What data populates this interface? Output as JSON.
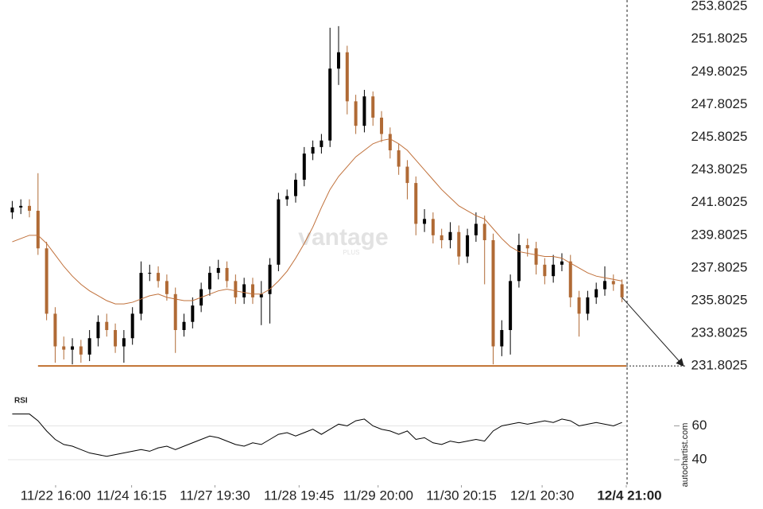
{
  "branding": {
    "watermark": "vantage",
    "watermark_sub": "PLUS",
    "credit": "autochartist.com"
  },
  "chart_data": [
    {
      "type": "candlestick",
      "xlim": [
        0,
        72
      ],
      "xticks": [
        {
          "value": 5.55,
          "label": "11/22 16:00"
        },
        {
          "value": 14.4,
          "label": "11/24 16:15"
        },
        {
          "value": 24.1,
          "label": "11/27 19:30"
        },
        {
          "value": 33.9,
          "label": "11/28 19:45"
        },
        {
          "value": 43.1,
          "label": "11/29 20:00"
        },
        {
          "value": 52.8,
          "label": "11/30 20:15"
        },
        {
          "value": 62.2,
          "label": "12/1 20:30"
        },
        {
          "value": 72,
          "label": "12/4 21:00"
        }
      ],
      "ylim": [
        230.3,
        254.2
      ],
      "yticks": [
        253.8025,
        251.8025,
        249.8025,
        247.8025,
        245.8025,
        243.8025,
        241.8025,
        239.8025,
        237.8025,
        235.8025,
        233.8025,
        231.8025
      ],
      "up_color": "#000000",
      "down_color": "#b06a35",
      "open": [
        241.2,
        241.5,
        241.6,
        241.3,
        239.0,
        235.0,
        233.0,
        232.8,
        233.0,
        232.5,
        233.5,
        234.5,
        234.0,
        233.0,
        233.5,
        235.0,
        237.5,
        237.5,
        237.0,
        236.2,
        234.0,
        234.5,
        235.5,
        236.5,
        237.5,
        237.8,
        237.0,
        236.0,
        236.8,
        236.0,
        236.2,
        238.0,
        242.0,
        242.2,
        243.2,
        244.8,
        245.2,
        245.6,
        250.0,
        251.0,
        248.0,
        246.5,
        248.3,
        247.0,
        246.0,
        245.0,
        244.0,
        243.0,
        240.5,
        240.8,
        239.8,
        239.5,
        240.0,
        238.5,
        239.8,
        240.5,
        239.5,
        233.0,
        234.0,
        237.0,
        239.2,
        239.0,
        238.0,
        237.3,
        238.0,
        238.2,
        236.0,
        235.0,
        236.0,
        236.5,
        237.0,
        236.8
      ],
      "high": [
        241.9,
        242.0,
        242.0,
        243.6,
        239.4,
        235.4,
        233.6,
        233.5,
        233.4,
        234.0,
        234.9,
        235.0,
        234.4,
        234.0,
        235.4,
        238.2,
        238.0,
        237.9,
        237.4,
        236.6,
        235.0,
        236.0,
        236.9,
        237.9,
        238.3,
        238.2,
        237.4,
        237.2,
        237.2,
        237.0,
        238.4,
        242.4,
        242.6,
        243.6,
        245.2,
        245.6,
        246.0,
        252.5,
        252.6,
        251.4,
        248.4,
        248.7,
        248.6,
        247.4,
        246.4,
        245.4,
        244.4,
        243.4,
        241.4,
        241.2,
        240.2,
        240.6,
        240.4,
        240.2,
        241.2,
        241.0,
        239.9,
        234.6,
        237.4,
        239.9,
        239.6,
        239.4,
        238.4,
        238.6,
        238.7,
        238.6,
        236.4,
        236.4,
        236.9,
        237.9,
        237.4,
        237.1
      ],
      "low": [
        240.8,
        241.1,
        240.9,
        238.6,
        234.6,
        232.0,
        232.2,
        231.9,
        232.0,
        232.1,
        233.0,
        233.6,
        232.6,
        232.0,
        233.1,
        234.6,
        237.0,
        236.6,
        235.8,
        232.6,
        233.6,
        234.1,
        235.1,
        236.1,
        237.1,
        236.6,
        235.6,
        235.6,
        235.6,
        234.3,
        234.4,
        237.6,
        241.6,
        241.8,
        242.8,
        244.4,
        244.8,
        245.2,
        249.0,
        247.2,
        246.0,
        246.1,
        246.5,
        245.5,
        244.5,
        243.5,
        242.0,
        239.8,
        240.0,
        239.3,
        239.0,
        239.0,
        238.0,
        238.1,
        239.4,
        236.8,
        231.9,
        232.4,
        232.5,
        236.6,
        238.5,
        237.4,
        236.8,
        236.9,
        237.6,
        235.4,
        233.6,
        234.6,
        235.6,
        236.1,
        236.4,
        235.7
      ],
      "close": [
        241.5,
        241.6,
        241.3,
        239.0,
        235.0,
        233.0,
        232.8,
        233.0,
        232.5,
        233.5,
        234.5,
        234.0,
        233.0,
        233.5,
        235.0,
        237.5,
        237.5,
        237.0,
        236.2,
        234.0,
        234.5,
        235.5,
        236.5,
        237.5,
        237.8,
        237.0,
        236.0,
        236.8,
        236.0,
        236.2,
        238.0,
        242.0,
        242.2,
        243.2,
        244.8,
        245.2,
        245.6,
        250.0,
        251.0,
        248.0,
        246.5,
        248.3,
        247.0,
        246.0,
        245.0,
        244.0,
        243.0,
        240.5,
        240.8,
        239.8,
        239.5,
        240.0,
        238.5,
        239.8,
        240.5,
        239.5,
        233.0,
        234.0,
        237.0,
        239.2,
        239.0,
        238.0,
        237.3,
        238.0,
        238.2,
        236.0,
        235.0,
        236.0,
        236.5,
        237.0,
        236.8,
        236.0
      ],
      "series": [
        {
          "color": "#c0703a",
          "values": [
            239.4,
            239.6,
            239.8,
            239.8,
            239.3,
            238.6,
            237.9,
            237.3,
            236.8,
            236.4,
            236.1,
            235.8,
            235.6,
            235.6,
            235.7,
            235.9,
            236.1,
            236.2,
            236.0,
            235.9,
            235.8,
            235.8,
            236.0,
            236.2,
            236.4,
            236.5,
            236.4,
            236.3,
            236.2,
            236.2,
            236.5,
            237.0,
            237.6,
            238.4,
            239.3,
            240.3,
            241.5,
            242.6,
            243.4,
            244.0,
            244.6,
            245.0,
            245.4,
            245.6,
            245.7,
            245.4,
            245.0,
            244.4,
            243.8,
            243.2,
            242.6,
            242.1,
            241.6,
            241.3,
            241.0,
            240.8,
            240.2,
            239.6,
            239.1,
            238.8,
            238.7,
            238.6,
            238.5,
            238.5,
            238.4,
            238.1,
            237.8,
            237.5,
            237.3,
            237.2,
            237.1,
            237.0
          ]
        }
      ],
      "support": 231.8025,
      "support_color": "#c0702f"
    },
    {
      "type": "line",
      "title": "RSI",
      "xlim": [
        0,
        72
      ],
      "ylim": [
        25,
        79
      ],
      "yticks": [
        60,
        40
      ],
      "grid": true,
      "series": [
        {
          "color": "#000000",
          "values": [
            67,
            67,
            67,
            63,
            57,
            52,
            49,
            48,
            46,
            44,
            43,
            42,
            43,
            44,
            45,
            46,
            45,
            47,
            48,
            46,
            48,
            50,
            52,
            54,
            53,
            51,
            49,
            48,
            50,
            49,
            52,
            55,
            56,
            54,
            56,
            58,
            55,
            58,
            61,
            60,
            63,
            64,
            60,
            58,
            57,
            55,
            57,
            52,
            53,
            50,
            49,
            51,
            50,
            51,
            52,
            51,
            57,
            60,
            61,
            62,
            61,
            62,
            63,
            62,
            64,
            63,
            60,
            61,
            62,
            61,
            60,
            62
          ]
        }
      ]
    }
  ]
}
